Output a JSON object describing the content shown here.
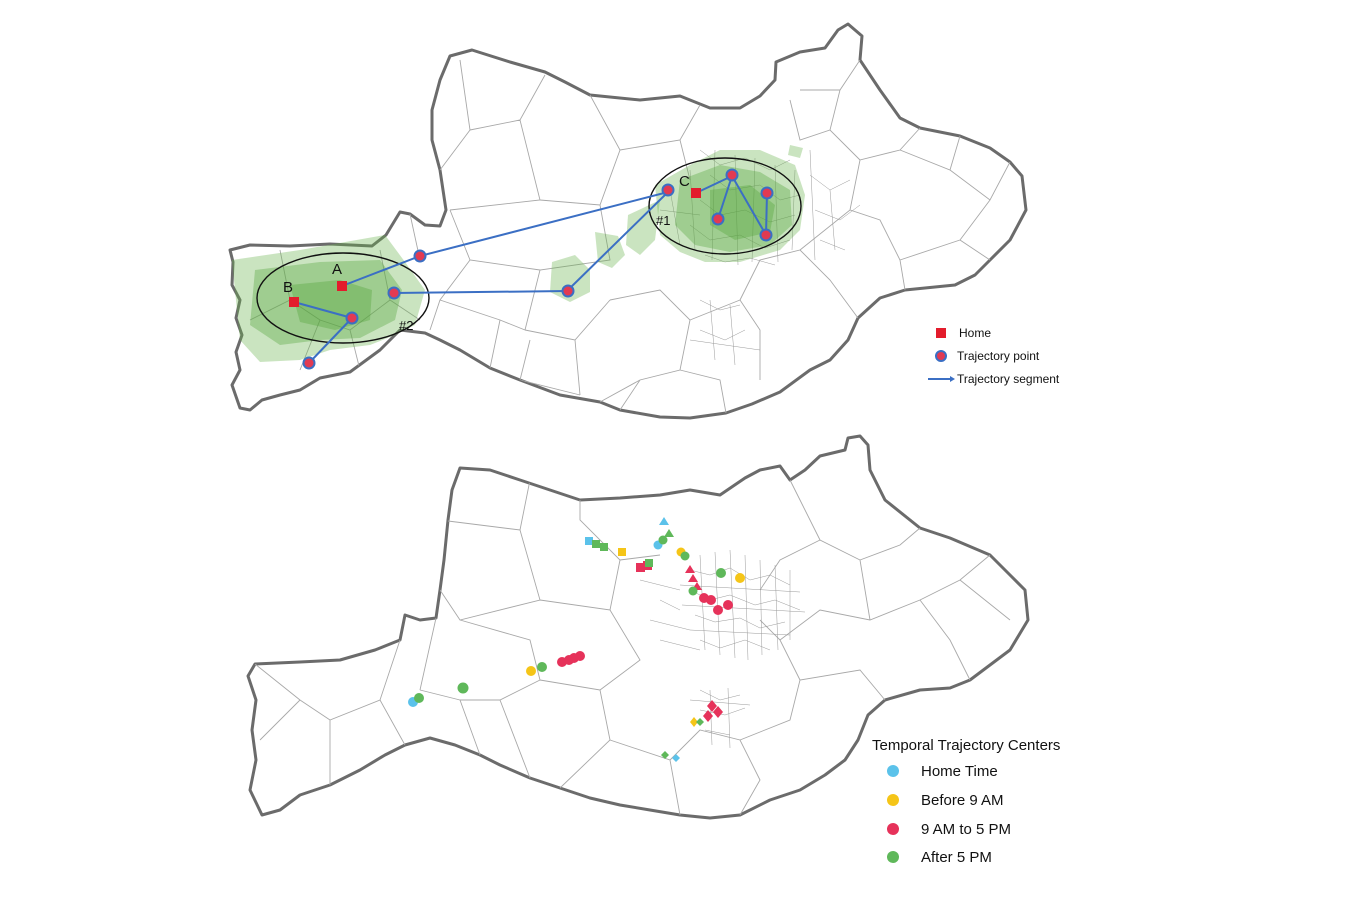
{
  "top_map": {
    "labels": {
      "home_a": "A",
      "home_b": "B",
      "home_c": "C",
      "cluster_1": "#1",
      "cluster_2": "#2"
    },
    "legend": {
      "home": "Home",
      "trajectory_point": "Trajectory point",
      "trajectory_segment": "Trajectory segment"
    },
    "colors": {
      "home": "#e31c2c",
      "trajectory": "#3b6fc4",
      "density": "#66b34a"
    }
  },
  "bottom_map": {
    "legend": {
      "title": "Temporal Trajectory Centers",
      "items": [
        {
          "label": "Home Time",
          "color": "#5bc2ea"
        },
        {
          "label": "Before 9 AM",
          "color": "#f5c518"
        },
        {
          "label": "9 AM to 5 PM",
          "color": "#e6325a"
        },
        {
          "label": "After 5 PM",
          "color": "#5fb85a"
        }
      ]
    }
  }
}
